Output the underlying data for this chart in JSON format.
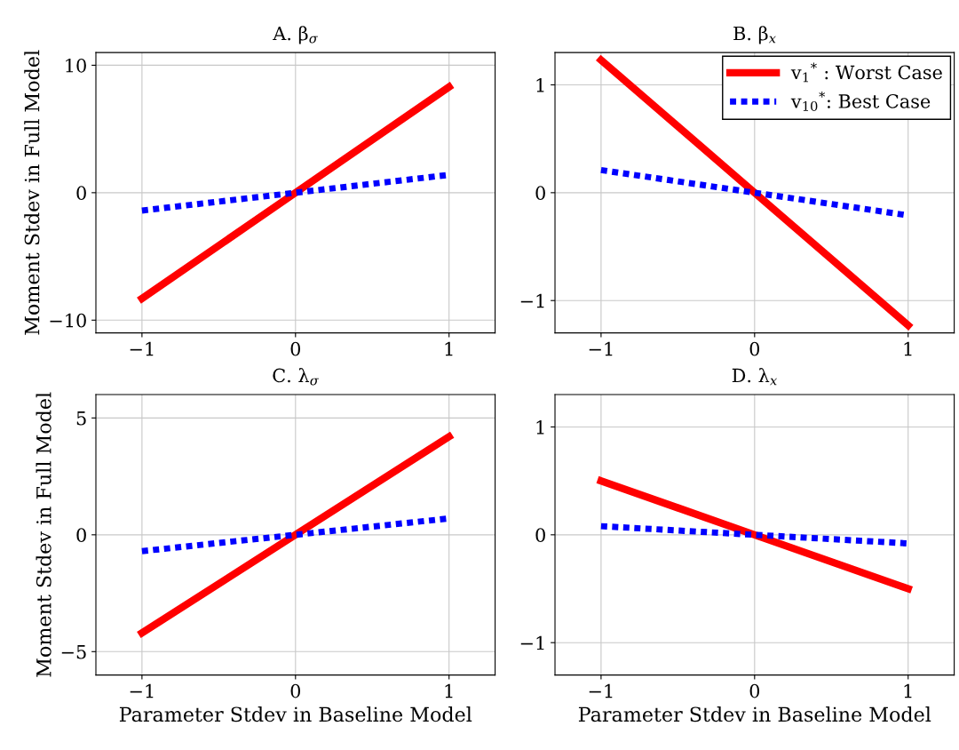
{
  "chart_data": [
    {
      "type": "line",
      "title": "A. β$_{σ}$",
      "ylabel": "Moment Stdev in Full Model",
      "xlim": [
        -1.3,
        1.3
      ],
      "ylim": [
        -11,
        11
      ],
      "xticks": [
        -1,
        0,
        1
      ],
      "yticks": [
        -10,
        0,
        10
      ],
      "grid": true,
      "x": [
        -1,
        0,
        1
      ],
      "series": [
        {
          "color": "#ff0000",
          "line_style": "solid",
          "values": [
            -8.3,
            0,
            8.3
          ]
        },
        {
          "color": "#0000ff",
          "line_style": "dotted",
          "values": [
            -1.4,
            0,
            1.4
          ]
        }
      ]
    },
    {
      "type": "line",
      "title": "B. β$_{x}$",
      "xlim": [
        -1.3,
        1.3
      ],
      "ylim": [
        -1.3,
        1.3
      ],
      "xticks": [
        -1,
        0,
        1
      ],
      "yticks": [
        -1,
        0,
        1
      ],
      "grid": true,
      "legend": "top right",
      "x": [
        -1,
        0,
        1
      ],
      "series": [
        {
          "name": "v$_{1}$$^{*}$ : Worst Case",
          "color": "#ff0000",
          "line_style": "solid",
          "values": [
            1.23,
            0,
            -1.23
          ]
        },
        {
          "name": "v$_{10}$$^{*}$: Best Case",
          "color": "#0000ff",
          "line_style": "dotted",
          "values": [
            0.21,
            0,
            -0.21
          ]
        }
      ]
    },
    {
      "type": "line",
      "title": "C. λ$_{σ}$",
      "ylabel": "Moment Stdev in Full Model",
      "xlabel": "Parameter Stdev in Baseline Model",
      "xlim": [
        -1.3,
        1.3
      ],
      "ylim": [
        -6,
        6
      ],
      "xticks": [
        -1,
        0,
        1
      ],
      "yticks": [
        -5,
        0,
        5
      ],
      "grid": true,
      "x": [
        -1,
        0,
        1
      ],
      "series": [
        {
          "color": "#ff0000",
          "line_style": "solid",
          "values": [
            -4.2,
            0,
            4.2
          ]
        },
        {
          "color": "#0000ff",
          "line_style": "dotted",
          "values": [
            -0.7,
            0,
            0.7
          ]
        }
      ]
    },
    {
      "type": "line",
      "title": "D. λ$_{x}$",
      "xlabel": "Parameter Stdev in Baseline Model",
      "xlim": [
        -1.3,
        1.3
      ],
      "ylim": [
        -1.3,
        1.3
      ],
      "xticks": [
        -1,
        0,
        1
      ],
      "yticks": [
        -1,
        0,
        1
      ],
      "grid": true,
      "x": [
        -1,
        0,
        1
      ],
      "series": [
        {
          "color": "#ff0000",
          "line_style": "solid",
          "values": [
            0.5,
            0,
            -0.5
          ]
        },
        {
          "color": "#0000ff",
          "line_style": "dotted",
          "values": [
            0.08,
            0,
            -0.08
          ]
        }
      ]
    }
  ]
}
